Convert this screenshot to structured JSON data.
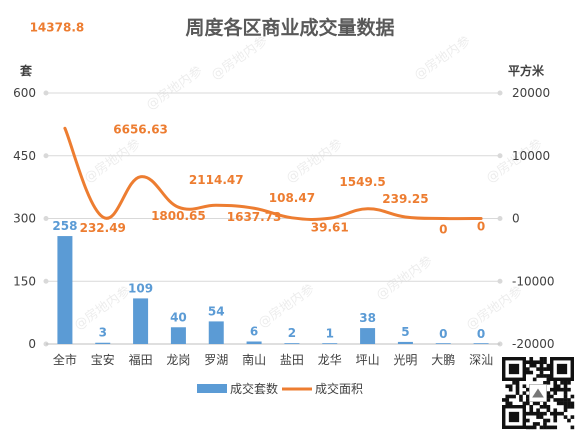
{
  "chart_data": {
    "type": "bar",
    "title": "周度各区商业成交量数据",
    "categories": [
      "全市",
      "宝安",
      "福田",
      "龙岗",
      "罗湖",
      "南山",
      "盐田",
      "龙华",
      "坪山",
      "光明",
      "大鹏",
      "深汕"
    ],
    "y_left_unit": "套",
    "y_right_unit": "平方米",
    "y_left_ticks": [
      "0",
      "150",
      "300",
      "450",
      "600"
    ],
    "y_right_ticks": [
      "-20000",
      "-10000",
      "0",
      "10000",
      "20000"
    ],
    "y_left_range": [
      0,
      600
    ],
    "y_right_range": [
      -20000,
      20000
    ],
    "grid": true,
    "legend_position": "bottom",
    "series": [
      {
        "name": "成交套数",
        "type": "bar",
        "axis": "left",
        "color": "#5b9bd5",
        "values": [
          258,
          3,
          109,
          40,
          54,
          6,
          2,
          1,
          38,
          5,
          0,
          0
        ],
        "labels": [
          "258",
          "3",
          "109",
          "40",
          "54",
          "6",
          "2",
          "1",
          "38",
          "5",
          "0",
          "0"
        ]
      },
      {
        "name": "成交面积",
        "type": "line",
        "smooth": true,
        "axis": "right",
        "color": "#ed7d31",
        "values": [
          14378.8,
          232.49,
          6656.63,
          1800.65,
          2114.47,
          1637.73,
          108.47,
          39.61,
          1549.5,
          239.25,
          0,
          0
        ],
        "labels": [
          "14378.8",
          "232.49",
          "6656.63",
          "1800.65",
          "2114.47",
          "1637.73",
          "108.47",
          "39.61",
          "1549.5",
          "239.25",
          "0",
          "0"
        ]
      }
    ]
  },
  "watermark_text": "@房地内参"
}
